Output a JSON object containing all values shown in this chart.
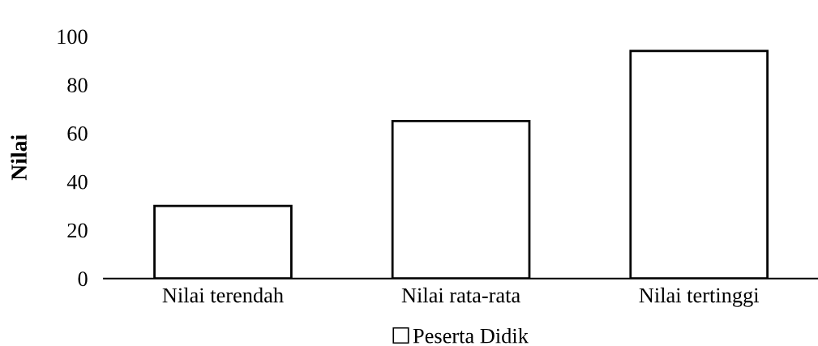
{
  "chart_data": {
    "type": "bar",
    "ylabel": "Nilai",
    "categories": [
      "Nilai terendah",
      "Nilai rata-rata",
      "Nilai tertinggi"
    ],
    "series": [
      {
        "name": "Peserta Didik",
        "color": "#ffffff",
        "values": [
          30,
          65,
          94
        ]
      }
    ],
    "ylim": [
      0,
      100
    ],
    "yticks": [
      0,
      20,
      40,
      60,
      80,
      100
    ],
    "grid": false,
    "legend": "bottom"
  }
}
